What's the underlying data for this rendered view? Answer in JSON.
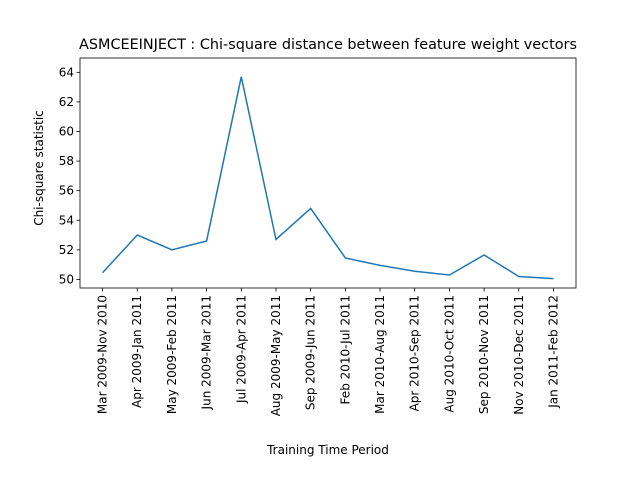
{
  "chart_data": {
    "type": "line",
    "title": "ASMCEEINJECT : Chi-square distance between feature weight vectors",
    "x_label": "Training Time Period",
    "y_label": "Chi-square statistic",
    "categories": [
      "Mar 2009-Nov 2010",
      "Apr 2009-Jan 2011",
      "May 2009-Feb 2011",
      "Jun 2009-Mar 2011",
      "Jul 2009-Apr 2011",
      "Aug 2009-May 2011",
      "Sep 2009-Jun 2011",
      "Feb 2010-Jul 2011",
      "Mar 2010-Aug 2011",
      "Apr 2010-Sep 2011",
      "Aug 2010-Oct 2011",
      "Sep 2010-Nov 2011",
      "Nov 2010-Dec 2011",
      "Jan 2011-Feb 2012"
    ],
    "series": [
      {
        "name": "Chi-square statistic",
        "color": "#1f77b4",
        "values": [
          50.45,
          53.0,
          52.0,
          52.6,
          63.7,
          52.7,
          54.8,
          51.45,
          50.95,
          50.55,
          50.3,
          51.65,
          50.2,
          50.05
        ]
      }
    ],
    "ylim": [
      49.42,
      64.97
    ],
    "yticks": [
      50,
      52,
      54,
      56,
      58,
      60,
      62,
      64
    ],
    "grid": false
  }
}
